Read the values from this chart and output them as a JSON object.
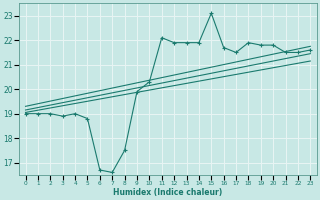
{
  "x": [
    0,
    1,
    2,
    3,
    4,
    5,
    6,
    7,
    8,
    9,
    10,
    11,
    12,
    13,
    14,
    15,
    16,
    17,
    18,
    19,
    20,
    21,
    22,
    23
  ],
  "y_main": [
    19.0,
    19.0,
    19.0,
    18.9,
    19.0,
    18.8,
    16.7,
    16.6,
    17.5,
    19.9,
    20.3,
    22.1,
    21.9,
    21.9,
    21.9,
    23.1,
    21.7,
    21.5,
    21.9,
    21.8,
    21.8,
    21.5,
    21.5,
    21.6
  ],
  "line_color": "#1a7a6e",
  "bg_color": "#c8e8e5",
  "grid_color": "#e8f5f4",
  "xlabel": "Humidex (Indice chaleur)",
  "xlim": [
    -0.5,
    23.5
  ],
  "ylim": [
    16.5,
    23.5
  ],
  "yticks": [
    17,
    18,
    19,
    20,
    21,
    22,
    23
  ],
  "xticks": [
    0,
    1,
    2,
    3,
    4,
    5,
    6,
    7,
    8,
    9,
    10,
    11,
    12,
    13,
    14,
    15,
    16,
    17,
    18,
    19,
    20,
    21,
    22,
    23
  ],
  "reg_line1": [
    [
      0,
      19.05
    ],
    [
      23,
      21.15
    ]
  ],
  "reg_line2": [
    [
      0,
      19.15
    ],
    [
      23,
      21.45
    ]
  ],
  "reg_line3": [
    [
      0,
      19.3
    ],
    [
      23,
      21.75
    ]
  ]
}
